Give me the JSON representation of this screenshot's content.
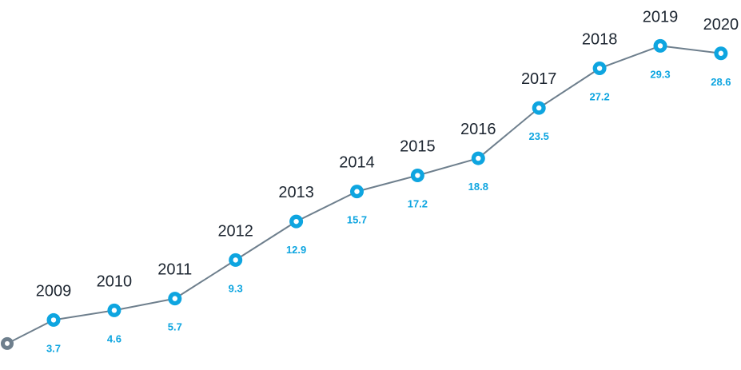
{
  "chart_data": {
    "type": "line",
    "title": "",
    "xlabel": "",
    "ylabel": "",
    "x": [
      "2009",
      "2010",
      "2011",
      "2012",
      "2013",
      "2014",
      "2015",
      "2016",
      "2017",
      "2018",
      "2019",
      "2020"
    ],
    "series": [
      {
        "values": [
          3.7,
          4.6,
          5.7,
          9.3,
          12.9,
          15.7,
          17.2,
          18.8,
          23.5,
          27.2,
          29.3,
          28.6
        ]
      }
    ],
    "start_point_value": 1.5,
    "ylim": [
      0,
      30
    ],
    "grid": false,
    "legend": "none",
    "colors": {
      "line": "#6e7f8d",
      "marker": "#0ea5e0",
      "start_marker": "#6e7f8d",
      "value_label": "#0ea5e0",
      "year_label": "#1c2530"
    }
  }
}
